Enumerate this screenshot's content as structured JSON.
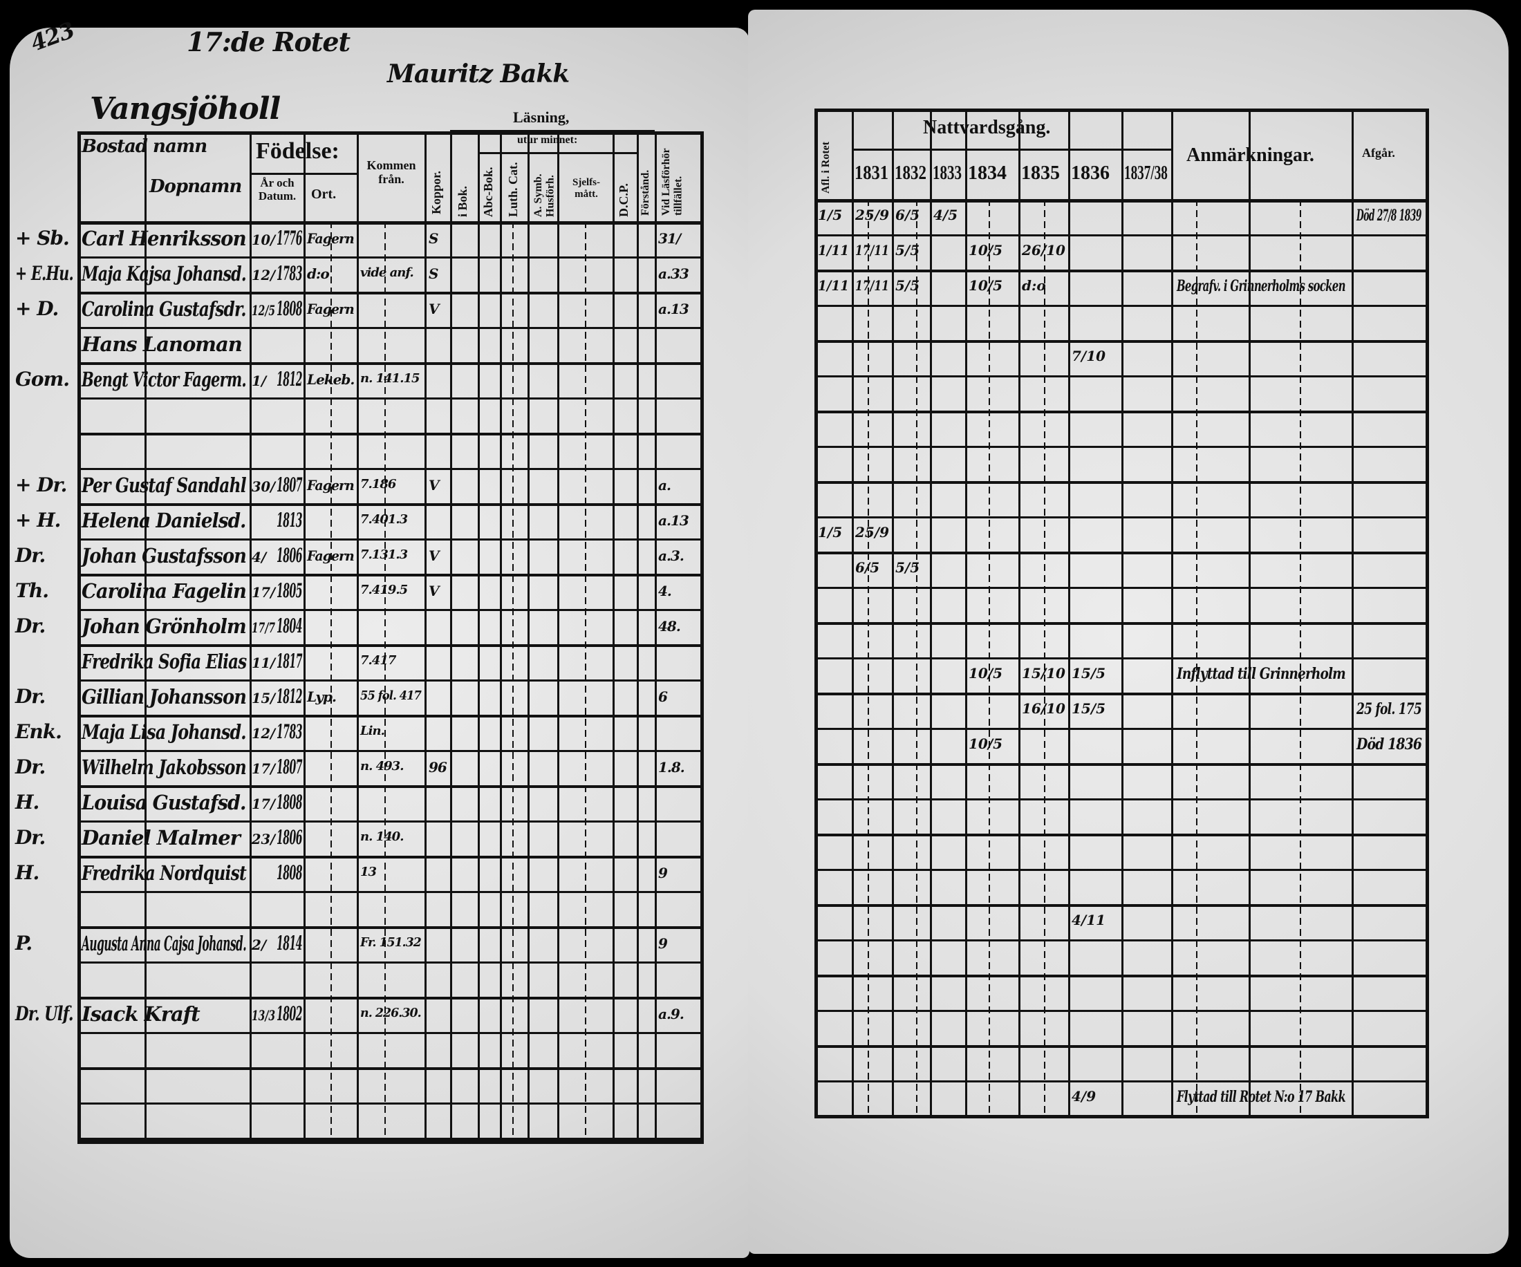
{
  "left_page": {
    "page_number": "423",
    "handwritten_heading": "17:de Rotet",
    "handwritten_subheading": "Mauritz Bakk",
    "place_name": "Vangsjöholl",
    "header": {
      "col_title": "Bostad namn",
      "col_name": "Dopnamn",
      "fodelse": "Födelse:",
      "ar_datum": "År och Datum.",
      "ort": "Ort.",
      "kommen_fran": "Kommen från.",
      "koppor": "Koppor.",
      "lasning": "Läsning,",
      "utur_minnet": "utur minnet:",
      "i_bok": "i Bok.",
      "abc_bok": "Abc-Bok.",
      "luth_cat": "Luth. Cat.",
      "a_symb": "A. Symb. Husförh.",
      "sjelfs": "Sjelfs-mått.",
      "dcp": "D.C.P.",
      "forstand": "Förstånd.",
      "vid_tillfallet": "Vid Läsförhör tillfället."
    },
    "rows": [
      {
        "mark": "+ Sb.",
        "name": "Carl Henriksson",
        "date": "10/",
        "year": "1776",
        "ort": "Fagern",
        "from": "",
        "koppor": "S"
      },
      {
        "mark": "+ E.Hu.",
        "name": "Maja Kajsa Johansd.",
        "date": "12/",
        "year": "1783",
        "ort": "d:o",
        "from": "vide anf.",
        "koppor": "S"
      },
      {
        "mark": "+ D.",
        "name": "Carolina Gustafsdr.",
        "date": "12/5",
        "year": "1808",
        "ort": "Fagern",
        "from": "",
        "koppor": "V"
      },
      {
        "mark": "",
        "name": "Hans Lanoman",
        "date": "",
        "year": "",
        "ort": "",
        "from": "",
        "koppor": ""
      },
      {
        "mark": "Gom.",
        "name": "Bengt Victor Fagerm.",
        "date": "1/",
        "year": "1812",
        "ort": "Lekeb.",
        "from": "n. 141.15",
        "koppor": ""
      },
      {},
      {},
      {
        "mark": "+ Dr.",
        "name": "Per Gustaf Sandahl",
        "date": "30/",
        "year": "1807",
        "ort": "Fagern",
        "from": "7.186",
        "koppor": "V"
      },
      {
        "mark": "+ H.",
        "name": "Helena Danielsd.",
        "date": "",
        "year": "1813",
        "ort": "",
        "from": "7.401.3",
        "koppor": ""
      },
      {
        "mark": "Dr.",
        "name": "Johan Gustafsson",
        "date": "4/",
        "year": "1806",
        "ort": "Fagern",
        "from": "7.131.3",
        "koppor": "V"
      },
      {
        "mark": "Th.",
        "name": "Carolina Fagelin",
        "date": "17/",
        "year": "1805",
        "ort": "",
        "from": "7.419.5",
        "koppor": "V"
      },
      {
        "mark": "Dr.",
        "name": "Johan Grönholm",
        "date": "17/7",
        "year": "1804",
        "ort": "",
        "from": "",
        "koppor": ""
      },
      {
        "mark": "",
        "name": "Fredrika Sofia Elias",
        "date": "11/",
        "year": "1817",
        "ort": "",
        "from": "7.417",
        "koppor": ""
      },
      {
        "mark": "Dr.",
        "name": "Gillian Johansson",
        "date": "15/",
        "year": "1812",
        "ort": "Lyp.",
        "from": "55 fol. 417",
        "koppor": ""
      },
      {
        "mark": "Enk.",
        "name": "Maja Lisa Johansd.",
        "date": "12/",
        "year": "1783",
        "ort": "",
        "from": "Lin.",
        "koppor": ""
      },
      {
        "mark": "Dr.",
        "name": "Wilhelm Jakobsson",
        "date": "17/",
        "year": "1807",
        "ort": "",
        "from": "n. 493.",
        "koppor": "96"
      },
      {
        "mark": "H.",
        "name": "Louisa Gustafsd.",
        "date": "17/",
        "year": "1808",
        "ort": "",
        "from": "",
        "koppor": ""
      },
      {
        "mark": "Dr.",
        "name": "Daniel Malmer",
        "date": "23/",
        "year": "1806",
        "ort": "",
        "from": "n. 140.",
        "koppor": ""
      },
      {
        "mark": "H.",
        "name": "Fredrika Nordquist",
        "date": "",
        "year": "1808",
        "ort": "",
        "from": "13",
        "koppor": ""
      },
      {},
      {
        "mark": "P.",
        "name": "Augusta Anna Cajsa Johansd.",
        "date": "2/",
        "year": "1814",
        "ort": "",
        "from": "Fr. 151.32",
        "koppor": ""
      },
      {},
      {
        "mark": "Dr. Ulf.",
        "name": "Isack Kraft",
        "date": "13/3",
        "year": "1802",
        "ort": "",
        "from": "n. 226.30.",
        "koppor": ""
      },
      {},
      {},
      {}
    ],
    "vid_values": [
      "31/",
      "a.33",
      "a.13",
      "",
      "",
      "",
      "",
      "a.",
      "a.13",
      "a.3.",
      "4.",
      "48.",
      "",
      "6",
      "",
      "1.8.",
      "",
      "",
      "9",
      "",
      "9",
      "",
      "a.9."
    ]
  },
  "right_page": {
    "header": {
      "first_col": "Afl. i Rotet",
      "nattvardsgang": "Nattvardsgång.",
      "years": [
        "1831",
        "1832",
        "1833",
        "1834",
        "1835",
        "1836",
        "1837/38"
      ],
      "anmarkningar": "Anmärkningar.",
      "afgar": "Afgår."
    },
    "rows": [
      {
        "c0": "1/5",
        "c1": "25/9",
        "c2": "6/5",
        "c3": "4/5",
        "c4": "",
        "c5": "",
        "c6": "",
        "remark": "",
        "afgar": "Död 27/8 1839"
      },
      {
        "c0": "1/11",
        "c1": "17/11",
        "c2": "5/5",
        "c3": "",
        "c4": "10/5",
        "c5": "26/10",
        "c6": "",
        "remark": "",
        "afgar": ""
      },
      {
        "c0": "1/11",
        "c1": "17/11",
        "c2": "5/5",
        "c3": "",
        "c4": "10/5",
        "c5": "d:o",
        "c6": "",
        "remark": "Begrafv. i Grinnerholms socken",
        "afgar": ""
      },
      {},
      {
        "c0": "",
        "c1": "",
        "c2": "",
        "c3": "",
        "c4": "",
        "c5": "",
        "c6": "7/10",
        "remark": "",
        "afgar": ""
      },
      {},
      {},
      {},
      {},
      {
        "c0": "1/5",
        "c1": "25/9",
        "c2": "",
        "c3": "",
        "c4": "",
        "c5": "",
        "c6": "",
        "remark": "",
        "afgar": ""
      },
      {
        "c0": "",
        "c1": "6/5",
        "c2": "5/5",
        "c3": "",
        "c4": "",
        "c5": "",
        "c6": "",
        "remark": "",
        "afgar": ""
      },
      {},
      {},
      {
        "c0": "",
        "c1": "",
        "c2": "",
        "c3": "",
        "c4": "10/5",
        "c5": "15/10",
        "c6": "15/5",
        "remark": "Inflyttad till Grinnerholm",
        "afgar": ""
      },
      {
        "c0": "",
        "c1": "",
        "c2": "",
        "c3": "",
        "c4": "",
        "c5": "16/10",
        "c6": "15/5",
        "remark": "",
        "afgar": "25 fol. 175"
      },
      {
        "c0": "",
        "c1": "",
        "c2": "",
        "c3": "",
        "c4": "10/5",
        "c5": "",
        "c6": "",
        "remark": "",
        "afgar": "Död 1836"
      },
      {},
      {},
      {},
      {},
      {
        "c0": "",
        "c1": "",
        "c2": "",
        "c3": "",
        "c4": "",
        "c5": "",
        "c6": "4/11",
        "remark": "",
        "afgar": ""
      },
      {},
      {},
      {},
      {},
      {
        "c0": "",
        "c1": "",
        "c2": "",
        "c3": "",
        "c4": "",
        "c5": "",
        "c6": "4/9",
        "remark": "Flyttad till Rotet N:o 17 Bakk",
        "afgar": ""
      }
    ]
  }
}
